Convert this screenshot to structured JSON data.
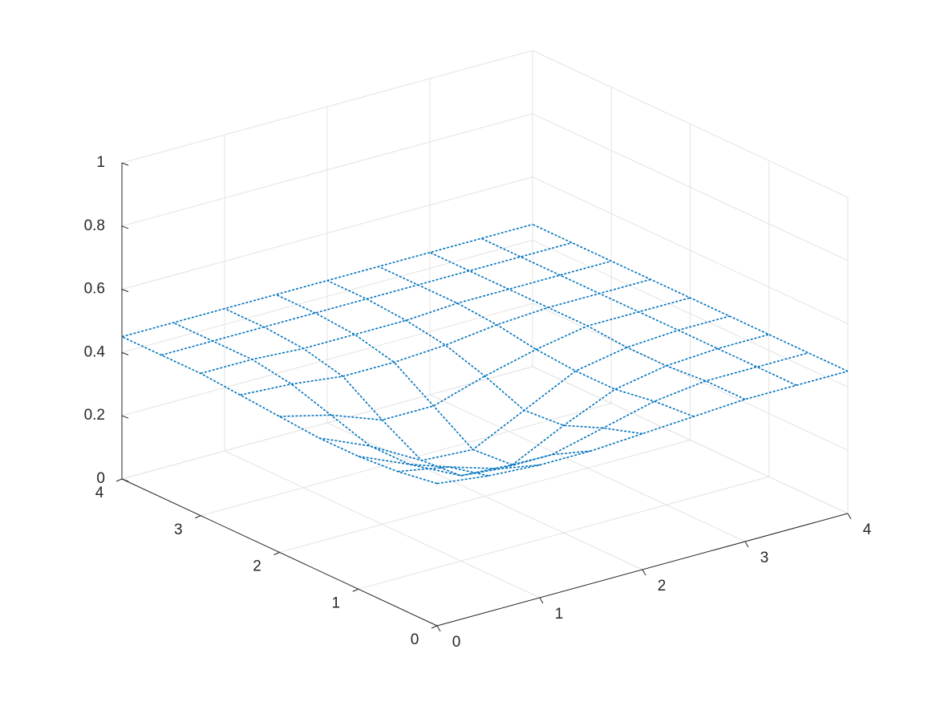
{
  "chart_data": {
    "type": "surface3d",
    "x": [
      0,
      0.5,
      1,
      1.5,
      2,
      2.5,
      3,
      3.5,
      4
    ],
    "y": [
      0,
      0.5,
      1,
      1.5,
      2,
      2.5,
      3,
      3.5,
      4
    ],
    "z": [
      [
        0.45,
        0.43,
        0.42,
        0.42,
        0.43,
        0.44,
        0.45,
        0.45,
        0.45
      ],
      [
        0.43,
        0.4,
        0.35,
        0.35,
        0.39,
        0.43,
        0.45,
        0.45,
        0.45
      ],
      [
        0.42,
        0.35,
        0.27,
        0.26,
        0.34,
        0.41,
        0.44,
        0.45,
        0.45
      ],
      [
        0.42,
        0.35,
        0.26,
        0.25,
        0.33,
        0.41,
        0.44,
        0.45,
        0.45
      ],
      [
        0.43,
        0.39,
        0.33,
        0.33,
        0.38,
        0.42,
        0.45,
        0.45,
        0.45
      ],
      [
        0.44,
        0.43,
        0.41,
        0.41,
        0.42,
        0.44,
        0.45,
        0.45,
        0.45
      ],
      [
        0.45,
        0.45,
        0.44,
        0.44,
        0.44,
        0.45,
        0.45,
        0.45,
        0.45
      ],
      [
        0.45,
        0.45,
        0.45,
        0.45,
        0.45,
        0.45,
        0.45,
        0.45,
        0.45
      ],
      [
        0.45,
        0.45,
        0.45,
        0.45,
        0.45,
        0.45,
        0.45,
        0.45,
        0.45
      ]
    ],
    "color": "#0072bd",
    "xlim": [
      0,
      4
    ],
    "ylim": [
      0,
      4
    ],
    "zlim": [
      0,
      1
    ],
    "xticks": [
      0,
      1,
      2,
      3,
      4
    ],
    "yticks": [
      0,
      1,
      2,
      3,
      4
    ],
    "zticks": [
      0,
      0.2,
      0.4,
      0.6,
      0.8,
      1
    ],
    "grid": true
  }
}
